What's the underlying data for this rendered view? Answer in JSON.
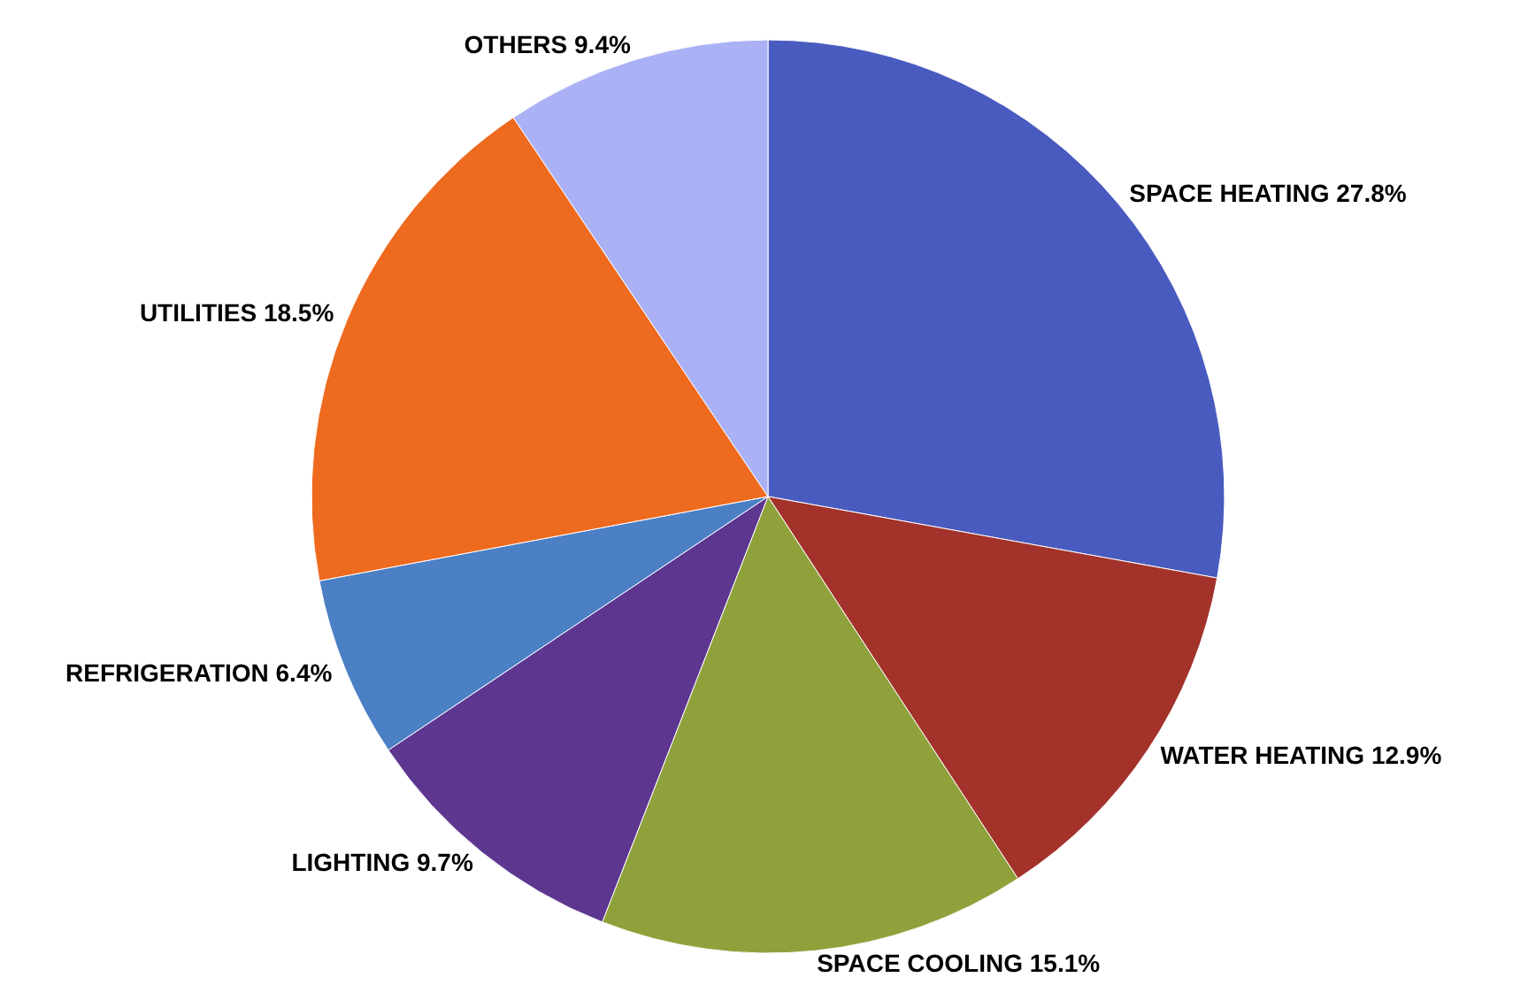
{
  "chart_data": {
    "type": "pie",
    "categories": [
      "SPACE HEATING",
      "WATER HEATING",
      "SPACE COOLING",
      "LIGHTING",
      "REFRIGERATION",
      "UTILITIES",
      "OTHERS"
    ],
    "values": [
      27.8,
      12.9,
      15.1,
      9.7,
      6.4,
      18.5,
      9.4
    ],
    "value_labels": [
      "27.8%",
      "12.9%",
      "15.1%",
      "9.7%",
      "6.4%",
      "18.5%",
      "9.4%"
    ],
    "colors": [
      "#4a5bc0",
      "#a3322b",
      "#8fa13b",
      "#5d3690",
      "#4b80c5",
      "#ee6a1f",
      "#aab1f5"
    ]
  }
}
